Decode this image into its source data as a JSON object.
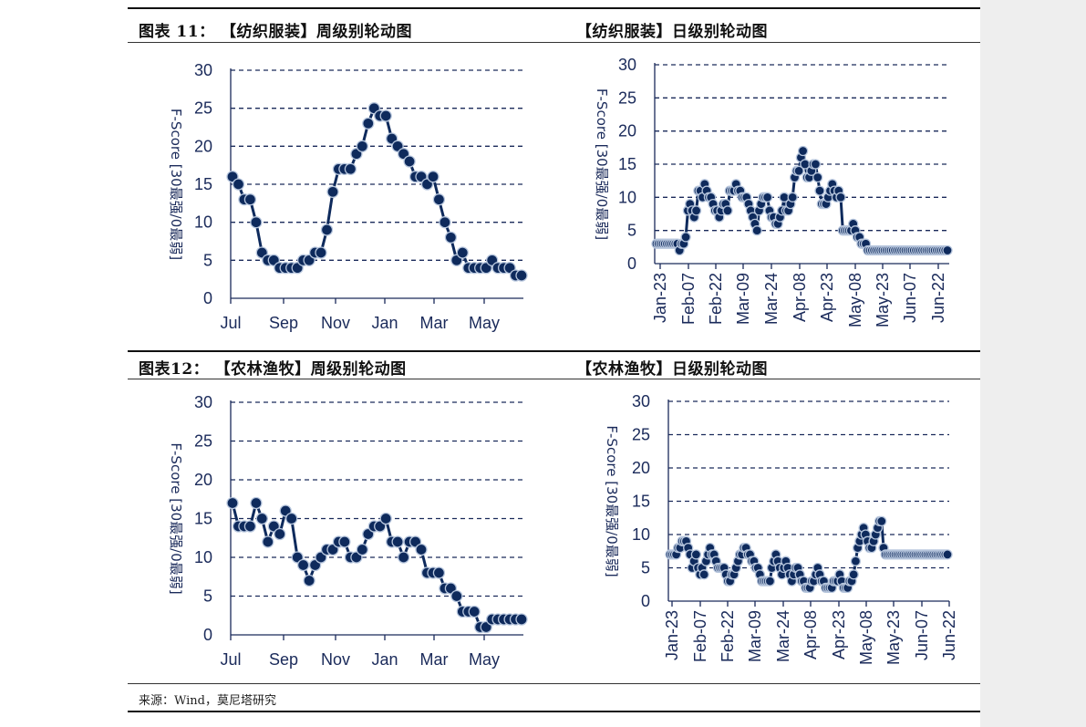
{
  "figures": {
    "f11_weekly_title": "图表 11：  【纺织服装】周级别轮动图",
    "f11_daily_title": "【纺织服装】日级别轮动图",
    "f12_weekly_title": "图表12：  【农林渔牧】周级别轮动图",
    "f12_daily_title": "【农林渔牧】日级别轮动图"
  },
  "source": "来源：Wind，莫尼塔研究",
  "colors": {
    "line": "#0e2a5c",
    "marker_edge": "#b7c6dd",
    "axis": "#1a2a5a",
    "sidebar": "#eeeeee"
  },
  "chart_data": [
    {
      "type": "line",
      "title": "【纺织服装】周级别轮动图",
      "ylabel": "F-Score [30最强/0最弱]",
      "ylim": [
        0,
        30
      ],
      "yticks": [
        0,
        5,
        10,
        15,
        20,
        25,
        30
      ],
      "xticks": [
        "Jul",
        "Sep",
        "Nov",
        "Jan",
        "Mar",
        "May"
      ],
      "x": [
        1,
        2,
        3,
        4,
        5,
        6,
        7,
        8,
        9,
        10,
        11,
        12,
        13,
        14,
        15,
        16,
        17,
        18,
        19,
        20,
        21,
        22,
        23,
        24,
        25,
        26,
        27,
        28,
        29,
        30,
        31,
        32,
        33,
        34,
        35,
        36,
        37,
        38,
        39,
        40,
        41,
        42,
        43,
        44,
        45,
        46,
        47,
        48,
        49,
        50
      ],
      "values": [
        16,
        15,
        13,
        13,
        10,
        6,
        5,
        5,
        4,
        4,
        4,
        4,
        5,
        5,
        6,
        6,
        9,
        14,
        17,
        17,
        17,
        19,
        20,
        23,
        25,
        24,
        24,
        21,
        20,
        19,
        18,
        16,
        16,
        15,
        16,
        13,
        10,
        8,
        5,
        6,
        4,
        4,
        4,
        4,
        5,
        4,
        4,
        4,
        3,
        3
      ],
      "grid": true
    },
    {
      "type": "line",
      "title": "【纺织服装】日级别轮动图",
      "ylabel": "F-Score [30最强/0最弱]",
      "ylim": [
        0,
        30
      ],
      "yticks": [
        0,
        5,
        10,
        15,
        20,
        25,
        30
      ],
      "xticks": [
        "Jan-23",
        "Feb-07",
        "Feb-22",
        "Mar-09",
        "Mar-24",
        "Apr-08",
        "Apr-23",
        "May-08",
        "May-23",
        "Jun-07",
        "Jun-22"
      ],
      "x": [
        1,
        2,
        3,
        4,
        5,
        6,
        7,
        8,
        9,
        10,
        11,
        12,
        13,
        14,
        15,
        16,
        17,
        18,
        19,
        20,
        21,
        22,
        23,
        24,
        25,
        26,
        27,
        28,
        29,
        30,
        31,
        32,
        33,
        34,
        35,
        36,
        37,
        38,
        39,
        40,
        41,
        42,
        43,
        44,
        45,
        46,
        47,
        48,
        49,
        50,
        51,
        52,
        53,
        54,
        55,
        56,
        57,
        58,
        59,
        60,
        61,
        62,
        63,
        64,
        65,
        66,
        67,
        68,
        69,
        70,
        71,
        72,
        73,
        74,
        75,
        76,
        77,
        78,
        79,
        80,
        81,
        82,
        83,
        84,
        85,
        86,
        87,
        88,
        89,
        90,
        91,
        92,
        93,
        94,
        95,
        96,
        97,
        98,
        99,
        100,
        101,
        102,
        103,
        104,
        105,
        106,
        107,
        108,
        109,
        110,
        111,
        112,
        113,
        114,
        115,
        116,
        117,
        118,
        119,
        120,
        121,
        122,
        123,
        124,
        125,
        126,
        127,
        128,
        129,
        130,
        131,
        132,
        133,
        134,
        135,
        136,
        137,
        138,
        139,
        140
      ],
      "values": [
        3,
        3,
        3,
        3,
        3,
        3,
        3,
        3,
        3,
        3,
        3,
        2,
        3,
        3,
        4,
        8,
        9,
        8,
        7,
        8,
        11,
        11,
        10,
        12,
        11,
        10,
        10,
        9,
        8,
        8,
        7,
        8,
        9,
        9,
        8,
        11,
        11,
        11,
        12,
        11,
        11,
        10,
        10,
        10,
        9,
        8,
        7,
        6,
        5,
        8,
        9,
        10,
        10,
        10,
        8,
        7,
        7,
        6,
        6,
        7,
        8,
        10,
        8,
        8,
        9,
        10,
        13,
        14,
        14,
        16,
        17,
        15,
        13,
        13,
        14,
        15,
        15,
        13,
        11,
        9,
        9,
        9,
        10,
        11,
        12,
        11,
        10,
        11,
        10,
        5,
        5,
        5,
        5,
        5,
        6,
        5,
        4,
        4,
        3,
        3,
        3,
        2,
        2,
        2,
        2,
        2,
        2,
        2,
        2,
        2,
        2,
        2,
        2,
        2,
        2,
        2,
        2,
        2,
        2,
        2,
        2,
        2,
        2,
        2,
        2,
        2,
        2,
        2,
        2,
        2,
        2,
        2,
        2,
        2,
        2,
        2,
        2,
        2,
        2,
        2
      ],
      "grid": true
    },
    {
      "type": "line",
      "title": "【农林渔牧】周级别轮动图",
      "ylabel": "F-Score [30最强/0最弱]",
      "ylim": [
        0,
        30
      ],
      "yticks": [
        0,
        5,
        10,
        15,
        20,
        25,
        30
      ],
      "xticks": [
        "Jul",
        "Sep",
        "Nov",
        "Jan",
        "Mar",
        "May"
      ],
      "x": [
        1,
        2,
        3,
        4,
        5,
        6,
        7,
        8,
        9,
        10,
        11,
        12,
        13,
        14,
        15,
        16,
        17,
        18,
        19,
        20,
        21,
        22,
        23,
        24,
        25,
        26,
        27,
        28,
        29,
        30,
        31,
        32,
        33,
        34,
        35,
        36,
        37,
        38,
        39,
        40,
        41,
        42,
        43,
        44,
        45,
        46,
        47,
        48,
        49,
        50
      ],
      "values": [
        17,
        14,
        14,
        14,
        17,
        15,
        12,
        14,
        13,
        16,
        15,
        10,
        9,
        7,
        9,
        10,
        11,
        11,
        12,
        12,
        10,
        10,
        11,
        13,
        14,
        14,
        15,
        12,
        12,
        10,
        12,
        12,
        11,
        8,
        8,
        8,
        6,
        6,
        5,
        3,
        3,
        3,
        1,
        1,
        2,
        2,
        2,
        2,
        2,
        2
      ],
      "grid": true
    },
    {
      "type": "line",
      "title": "【农林渔牧】日级别轮动图",
      "ylabel": "F-Score [30最强/0最弱]",
      "ylim": [
        0,
        30
      ],
      "yticks": [
        0,
        5,
        10,
        15,
        20,
        25,
        30
      ],
      "xticks": [
        "Jan-23",
        "Feb-07",
        "Feb-22",
        "Mar-09",
        "Mar-24",
        "Apr-08",
        "Apr-23",
        "May-08",
        "May-23",
        "Jun-07",
        "Jun-22"
      ],
      "x": [
        1,
        2,
        3,
        4,
        5,
        6,
        7,
        8,
        9,
        10,
        11,
        12,
        13,
        14,
        15,
        16,
        17,
        18,
        19,
        20,
        21,
        22,
        23,
        24,
        25,
        26,
        27,
        28,
        29,
        30,
        31,
        32,
        33,
        34,
        35,
        36,
        37,
        38,
        39,
        40,
        41,
        42,
        43,
        44,
        45,
        46,
        47,
        48,
        49,
        50,
        51,
        52,
        53,
        54,
        55,
        56,
        57,
        58,
        59,
        60,
        61,
        62,
        63,
        64,
        65,
        66,
        67,
        68,
        69,
        70,
        71,
        72,
        73,
        74,
        75,
        76,
        77,
        78,
        79,
        80,
        81,
        82,
        83,
        84,
        85,
        86,
        87,
        88,
        89,
        90,
        91,
        92,
        93,
        94,
        95,
        96,
        97,
        98,
        99,
        100,
        101,
        102,
        103,
        104,
        105,
        106,
        107,
        108,
        109,
        110,
        111,
        112,
        113,
        114,
        115,
        116,
        117,
        118,
        119,
        120,
        121,
        122,
        123,
        124,
        125,
        126,
        127,
        128,
        129,
        130,
        131,
        132,
        133,
        134,
        135,
        136,
        137,
        138,
        139,
        140
      ],
      "values": [
        7,
        7,
        7,
        7,
        8,
        8,
        9,
        9,
        9,
        8,
        7,
        5,
        6,
        7,
        5,
        4,
        5,
        4,
        6,
        7,
        8,
        7,
        7,
        6,
        5,
        5,
        5,
        5,
        4,
        3,
        3,
        4,
        4,
        5,
        6,
        7,
        7,
        8,
        8,
        7,
        7,
        6,
        6,
        5,
        5,
        4,
        3,
        3,
        3,
        3,
        3,
        5,
        6,
        7,
        6,
        5,
        4,
        5,
        6,
        5,
        4,
        3,
        4,
        5,
        5,
        4,
        3,
        3,
        2,
        2,
        2,
        3,
        3,
        4,
        5,
        4,
        3,
        3,
        2,
        2,
        2,
        2,
        3,
        3,
        3,
        4,
        3,
        2,
        2,
        2,
        3,
        3,
        4,
        6,
        8,
        9,
        10,
        11,
        10,
        9,
        8,
        8,
        9,
        10,
        11,
        12,
        12,
        8,
        7,
        7,
        7,
        7,
        7,
        7,
        7,
        7,
        7,
        7,
        7,
        7,
        7,
        7,
        7,
        7,
        7,
        7,
        7,
        7,
        7,
        7,
        7,
        7,
        7,
        7,
        7,
        7,
        7,
        7,
        7,
        7
      ],
      "grid": true
    }
  ]
}
